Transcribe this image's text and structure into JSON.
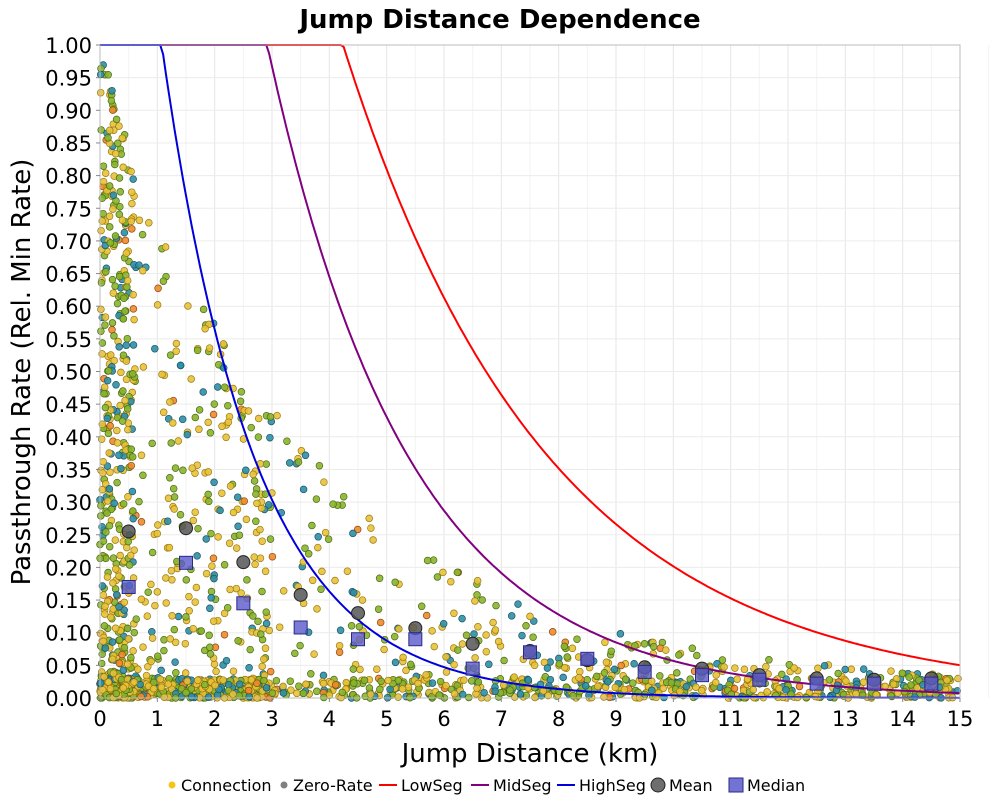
{
  "chart_data": {
    "type": "scatter",
    "title": "Jump Distance Dependence",
    "xlabel": "Jump Distance (km)",
    "ylabel": "Passthrough Rate (Rel. Min Rate)",
    "xlim": [
      0,
      15
    ],
    "ylim": [
      0,
      1.0
    ],
    "x_ticks": [
      "0",
      "1",
      "2",
      "3",
      "4",
      "5",
      "6",
      "7",
      "8",
      "9",
      "10",
      "11",
      "12",
      "13",
      "14",
      "15"
    ],
    "y_ticks": [
      "0.00",
      "0.05",
      "0.10",
      "0.15",
      "0.20",
      "0.25",
      "0.30",
      "0.35",
      "0.40",
      "0.45",
      "0.50",
      "0.55",
      "0.60",
      "0.65",
      "0.70",
      "0.75",
      "0.80",
      "0.85",
      "0.90",
      "0.95",
      "1.00"
    ],
    "grid": true,
    "legend_position": "bottom",
    "colors": {
      "connection": "#e8c23a",
      "connection_alt": "#8ab42c",
      "connection_teal": "#2e8fa6",
      "connection_orange": "#f08a2a",
      "zero_rate": "#808080",
      "lowseg": "#ff0000",
      "midseg": "#800080",
      "highseg": "#0000dd",
      "mean": "#555555",
      "median": "#5a5acc"
    },
    "legend": [
      {
        "name": "Connection",
        "marker": "dot",
        "color": "#f5c518"
      },
      {
        "name": "Zero-Rate",
        "marker": "dot",
        "color": "#808080"
      },
      {
        "name": "LowSeg",
        "marker": "line",
        "color": "#ff0000"
      },
      {
        "name": "MidSeg",
        "marker": "line",
        "color": "#800080"
      },
      {
        "name": "HighSeg",
        "marker": "line",
        "color": "#0000dd"
      },
      {
        "name": "Mean",
        "marker": "circle",
        "color": "#555555"
      },
      {
        "name": "Median",
        "marker": "square",
        "color": "#5a5acc"
      }
    ],
    "curves": [
      {
        "name": "LowSeg",
        "y0": 3.25,
        "decay_per_km": 0.278,
        "color": "#ff0000"
      },
      {
        "name": "MidSeg",
        "y0": 3.26,
        "decay_per_km": 0.405,
        "color": "#800080"
      },
      {
        "name": "HighSeg",
        "y0": 1.95,
        "decay_per_km": 0.62,
        "color": "#0000dd"
      }
    ],
    "mean": {
      "x": [
        0.5,
        1.5,
        2.5,
        3.5,
        4.5,
        5.5,
        6.5,
        7.5,
        8.5,
        9.5,
        10.5,
        11.5,
        12.5,
        13.5,
        14.5
      ],
      "y": [
        0.255,
        0.26,
        0.208,
        0.158,
        0.13,
        0.107,
        0.083,
        0.072,
        0.058,
        0.047,
        0.045,
        0.035,
        0.03,
        0.028,
        0.03
      ]
    },
    "median": {
      "x": [
        0.5,
        1.5,
        2.5,
        3.5,
        4.5,
        5.5,
        6.5,
        7.5,
        8.5,
        9.5,
        10.5,
        11.5,
        12.5,
        13.5,
        14.5
      ],
      "y": [
        0.17,
        0.207,
        0.145,
        0.108,
        0.09,
        0.09,
        0.045,
        0.07,
        0.06,
        0.04,
        0.035,
        0.028,
        0.022,
        0.022,
        0.022
      ]
    },
    "scatter_summary": {
      "approx_points": 2000,
      "note": "dense cloud of connection points concentrated near 0-2 km, decaying with distance"
    }
  }
}
